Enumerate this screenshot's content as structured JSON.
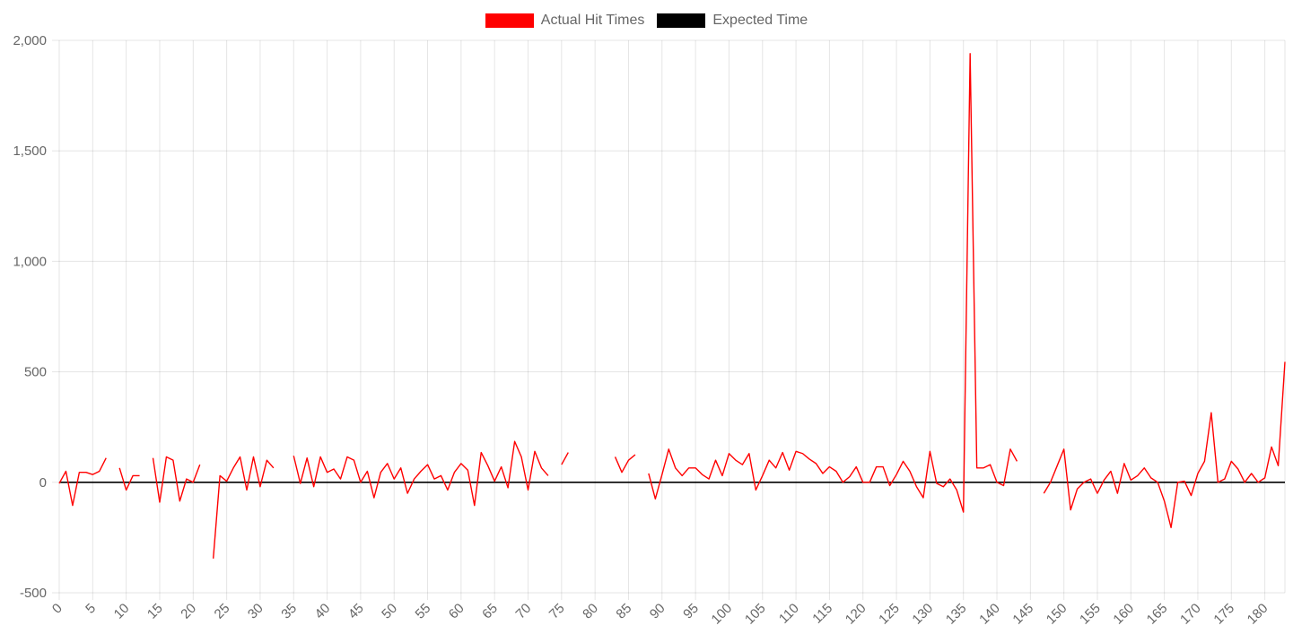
{
  "chart_data": {
    "type": "line",
    "legend_position": "top",
    "grid": true,
    "x_ticks": [
      "0",
      "5",
      "10",
      "15",
      "20",
      "25",
      "30",
      "35",
      "40",
      "45",
      "50",
      "55",
      "60",
      "65",
      "70",
      "75",
      "80",
      "85",
      "90",
      "95",
      "100",
      "105",
      "110",
      "115",
      "120",
      "125",
      "130",
      "135",
      "140",
      "145",
      "150",
      "155",
      "160",
      "165",
      "170",
      "175",
      "180"
    ],
    "x_range": [
      0,
      183
    ],
    "ylim": [
      -500,
      2000
    ],
    "y_ticks": [
      "-500",
      "0",
      "500",
      "1,000",
      "1,500",
      "2,000"
    ],
    "y_tick_values": [
      -500,
      0,
      500,
      1000,
      1500,
      2000
    ],
    "series": [
      {
        "name": "Actual Hit Times",
        "color": "#ff0000",
        "values": [
          -5,
          50,
          -105,
          45,
          45,
          35,
          50,
          110,
          null,
          65,
          -35,
          30,
          30,
          null,
          110,
          -90,
          115,
          100,
          -85,
          15,
          0,
          80,
          null,
          -345,
          30,
          5,
          65,
          115,
          -35,
          115,
          -20,
          100,
          65,
          null,
          null,
          120,
          -5,
          110,
          -20,
          115,
          45,
          60,
          15,
          115,
          100,
          0,
          50,
          -70,
          45,
          85,
          15,
          65,
          -50,
          15,
          50,
          80,
          15,
          30,
          -35,
          45,
          85,
          55,
          -105,
          135,
          75,
          5,
          70,
          -25,
          185,
          115,
          -35,
          140,
          65,
          30,
          null,
          80,
          135,
          null,
          null,
          null,
          null,
          null,
          null,
          115,
          45,
          100,
          125,
          null,
          40,
          -75,
          35,
          150,
          65,
          30,
          65,
          65,
          35,
          15,
          100,
          30,
          130,
          100,
          80,
          130,
          -35,
          30,
          100,
          65,
          135,
          55,
          140,
          130,
          105,
          85,
          40,
          70,
          50,
          0,
          25,
          70,
          0,
          0,
          70,
          70,
          -15,
          35,
          95,
          50,
          -20,
          -70,
          140,
          -5,
          -20,
          15,
          -35,
          -135,
          1940,
          65,
          65,
          80,
          0,
          -15,
          150,
          95,
          null,
          null,
          null,
          -50,
          0,
          75,
          150,
          -125,
          -30,
          0,
          15,
          -50,
          10,
          50,
          -50,
          85,
          10,
          30,
          65,
          20,
          0,
          -85,
          -205,
          0,
          5,
          -60,
          40,
          95,
          315,
          0,
          15,
          95,
          60,
          0,
          40,
          0,
          20,
          160,
          75,
          545
        ],
        "name_visible": true
      },
      {
        "name": "Expected Time",
        "color": "#000000",
        "constant_value": 0
      }
    ]
  }
}
